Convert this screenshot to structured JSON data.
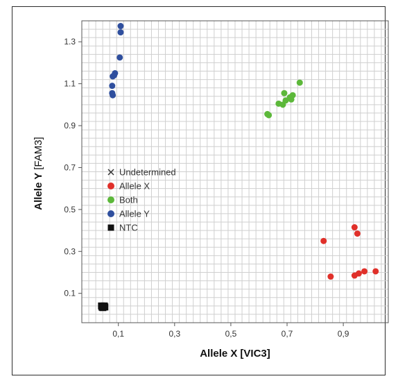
{
  "chart_data": {
    "type": "scatter",
    "xlabel": {
      "main": "Allele X",
      "unit": "[VIC3]"
    },
    "ylabel": {
      "main": "Allele Y",
      "unit": "[FAM3]"
    },
    "xlim": [
      -0.03,
      1.06
    ],
    "ylim": [
      -0.04,
      1.4
    ],
    "x_ticks": [
      {
        "value": 0.1,
        "label": "0,1"
      },
      {
        "value": 0.3,
        "label": "0,3"
      },
      {
        "value": 0.5,
        "label": "0,5"
      },
      {
        "value": 0.7,
        "label": "0,7"
      },
      {
        "value": 0.9,
        "label": "0,9"
      }
    ],
    "y_ticks": [
      {
        "value": 0.1,
        "label": "0.1"
      },
      {
        "value": 0.3,
        "label": "0.3"
      },
      {
        "value": 0.5,
        "label": "0.5"
      },
      {
        "value": 0.7,
        "label": "0.7"
      },
      {
        "value": 0.9,
        "label": "0.9"
      },
      {
        "value": 1.1,
        "label": "1.1"
      },
      {
        "value": 1.3,
        "label": "1.3"
      }
    ],
    "grid": true,
    "legend_position": "middle-left",
    "legend": [
      {
        "label": "Undetermined",
        "marker": "cross",
        "color": "#333333"
      },
      {
        "label": "Allele X",
        "marker": "circle",
        "color": "#e0302a"
      },
      {
        "label": "Both",
        "marker": "circle",
        "color": "#5cb83a"
      },
      {
        "label": "Allele Y",
        "marker": "circle",
        "color": "#2f4f9e"
      },
      {
        "label": "NTC",
        "marker": "square",
        "color": "#111111"
      }
    ],
    "series": [
      {
        "name": "Allele X",
        "color": "#e0302a",
        "marker": "circle",
        "points": [
          [
            0.83,
            0.35
          ],
          [
            0.855,
            0.18
          ],
          [
            0.94,
            0.415
          ],
          [
            0.95,
            0.385
          ],
          [
            0.94,
            0.185
          ],
          [
            0.955,
            0.195
          ],
          [
            0.975,
            0.205
          ],
          [
            1.015,
            0.205
          ]
        ]
      },
      {
        "name": "Both",
        "color": "#5cb83a",
        "marker": "circle",
        "points": [
          [
            0.63,
            0.955
          ],
          [
            0.635,
            0.95
          ],
          [
            0.67,
            1.005
          ],
          [
            0.685,
            1.0
          ],
          [
            0.69,
            1.055
          ],
          [
            0.695,
            1.02
          ],
          [
            0.71,
            1.035
          ],
          [
            0.715,
            1.025
          ],
          [
            0.72,
            1.045
          ],
          [
            0.745,
            1.105
          ]
        ]
      },
      {
        "name": "Allele Y",
        "color": "#2f4f9e",
        "marker": "circle",
        "points": [
          [
            0.108,
            1.375
          ],
          [
            0.108,
            1.345
          ],
          [
            0.105,
            1.225
          ],
          [
            0.088,
            1.15
          ],
          [
            0.085,
            1.14
          ],
          [
            0.08,
            1.135
          ],
          [
            0.078,
            1.09
          ],
          [
            0.078,
            1.055
          ],
          [
            0.08,
            1.045
          ]
        ]
      },
      {
        "name": "NTC",
        "color": "#111111",
        "marker": "square",
        "points": [
          [
            0.04,
            0.04
          ],
          [
            0.05,
            0.04
          ],
          [
            0.045,
            0.032
          ],
          [
            0.052,
            0.035
          ],
          [
            0.042,
            0.034
          ]
        ]
      }
    ]
  }
}
